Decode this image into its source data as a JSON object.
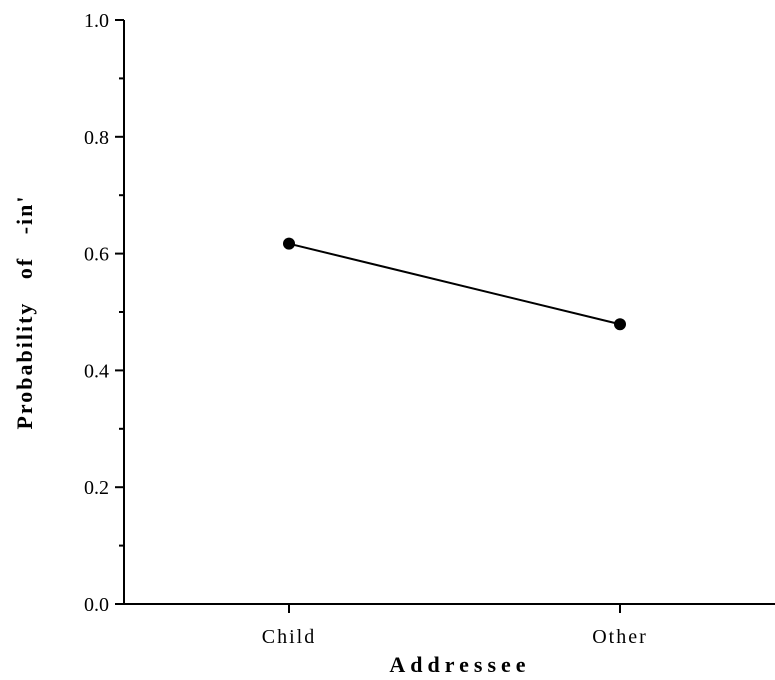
{
  "chart_data": {
    "type": "line",
    "title": "",
    "xlabel": "Addressee",
    "ylabel": "Probability   of   -in'",
    "categories": [
      "Child",
      "Other"
    ],
    "series": [
      {
        "values": [
          0.617,
          0.479
        ]
      }
    ],
    "ylim": [
      0.0,
      1.0
    ],
    "yticks": [
      "0.0",
      "0.2",
      "0.4",
      "0.6",
      "0.8",
      "1.0"
    ],
    "grid": false,
    "legend": "none",
    "colors": {
      "line": "#000000",
      "marker": "#000000"
    }
  }
}
